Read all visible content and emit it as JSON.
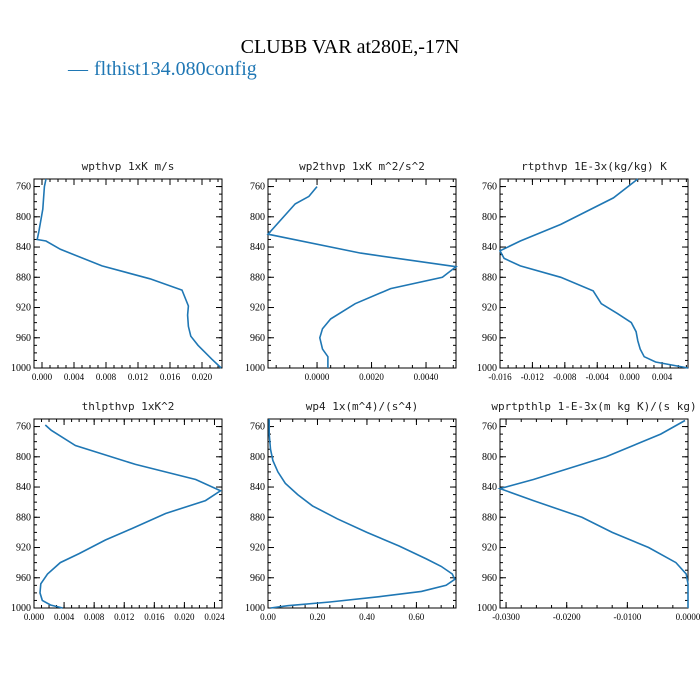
{
  "title": "CLUBB VAR at280E,-17N",
  "legend": {
    "marker": "—",
    "label": "flthist134.080config",
    "color": "#1f77b4"
  },
  "chart_data": [
    {
      "type": "line",
      "title": "wpthvp  1xK m/s",
      "xlim": [
        -0.001,
        0.0225
      ],
      "ylim": [
        1000,
        750
      ],
      "xticks": [
        0.0,
        0.004,
        0.008,
        0.012,
        0.016,
        0.02
      ],
      "xtick_labels": [
        "0.000",
        "0.004",
        "0.008",
        "0.012",
        "0.016",
        "0.020"
      ],
      "yticks": [
        760,
        800,
        840,
        880,
        920,
        960,
        1000
      ],
      "series": [
        {
          "x": [
            0.0005,
            0.0003,
            0.0001,
            -0.0004,
            -0.0006,
            0.0005,
            0.0023,
            0.0075,
            0.0135,
            0.0175,
            0.0183,
            0.0182,
            0.0183,
            0.0186,
            0.0195,
            0.0212,
            0.0224
          ],
          "y": [
            750,
            760,
            790,
            820,
            830,
            832,
            843,
            865,
            882,
            897,
            918,
            930,
            945,
            958,
            970,
            988,
            1000
          ]
        }
      ]
    },
    {
      "type": "line",
      "title": "wp2thvp  1xK m^2/s^2",
      "xlim": [
        -0.0018,
        0.0051
      ],
      "ylim": [
        1000,
        750
      ],
      "xticks": [
        0.0,
        0.002,
        0.004
      ],
      "xtick_labels": [
        "0.0000",
        "0.0020",
        "0.0040"
      ],
      "yticks": [
        760,
        800,
        840,
        880,
        920,
        960,
        1000
      ],
      "series": [
        {
          "x": [
            0.0,
            -0.0003,
            -0.0008,
            -0.0018,
            0.0016,
            0.0051,
            0.0046,
            0.0027,
            0.0014,
            0.0005,
            0.0002,
            0.0001,
            0.0002,
            0.0004,
            0.0004
          ],
          "y": [
            760,
            773,
            783,
            823,
            848,
            866,
            880,
            895,
            915,
            935,
            948,
            960,
            975,
            985,
            1000
          ]
        }
      ]
    },
    {
      "type": "line",
      "title": "rtpthvp  1E-3x(kg/kg) K",
      "xlim": [
        -0.016,
        0.0072
      ],
      "ylim": [
        1000,
        750
      ],
      "xticks": [
        -0.016,
        -0.012,
        -0.008,
        -0.004,
        0.0,
        0.004
      ],
      "xtick_labels": [
        "-0.016",
        "-0.012",
        "-0.008",
        "-0.004",
        "0.000",
        "0.004"
      ],
      "yticks": [
        760,
        800,
        840,
        880,
        920,
        960,
        1000
      ],
      "series": [
        {
          "x": [
            0.001,
            -0.002,
            -0.0085,
            -0.0135,
            -0.016,
            -0.0155,
            -0.0135,
            -0.0085,
            -0.0045,
            -0.0035,
            -0.0015,
            0.0002,
            0.0008,
            0.001,
            0.0013,
            0.0018,
            0.0032,
            0.0072
          ],
          "y": [
            750,
            775,
            810,
            832,
            845,
            855,
            865,
            880,
            898,
            915,
            928,
            940,
            952,
            964,
            975,
            985,
            992,
            1000
          ]
        }
      ]
    },
    {
      "type": "line",
      "title": "thlpthvp  1xK^2",
      "xlim": [
        0.0,
        0.025
      ],
      "ylim": [
        1000,
        750
      ],
      "xticks": [
        0.0,
        0.004,
        0.008,
        0.012,
        0.016,
        0.02,
        0.024
      ],
      "xtick_labels": [
        "0.000",
        "0.004",
        "0.008",
        "0.012",
        "0.016",
        "0.020",
        "0.024"
      ],
      "yticks": [
        760,
        800,
        840,
        880,
        920,
        960,
        1000
      ],
      "series": [
        {
          "x": [
            0.0015,
            0.0023,
            0.0055,
            0.0135,
            0.0215,
            0.0248,
            0.0228,
            0.0175,
            0.013,
            0.0095,
            0.006,
            0.0035,
            0.0018,
            0.0009,
            0.0008,
            0.0011,
            0.0022,
            0.0038
          ],
          "y": [
            758,
            765,
            785,
            810,
            830,
            845,
            858,
            875,
            895,
            910,
            928,
            940,
            955,
            968,
            980,
            990,
            996,
            1000
          ]
        }
      ]
    },
    {
      "type": "line",
      "title": "wp4  1x(m^4)/(s^4)",
      "xlim": [
        0.0,
        0.76
      ],
      "ylim": [
        1000,
        750
      ],
      "xticks": [
        0.0,
        0.2,
        0.4,
        0.6
      ],
      "xtick_labels": [
        "0.00",
        "0.20",
        "0.40",
        "0.60"
      ],
      "yticks": [
        760,
        800,
        840,
        880,
        920,
        960,
        1000
      ],
      "series": [
        {
          "x": [
            0.005,
            0.005,
            0.01,
            0.02,
            0.04,
            0.07,
            0.12,
            0.18,
            0.28,
            0.4,
            0.53,
            0.64,
            0.7,
            0.745,
            0.755,
            0.72,
            0.62,
            0.45,
            0.25,
            0.08,
            0.01
          ],
          "y": [
            750,
            770,
            790,
            805,
            820,
            835,
            850,
            865,
            882,
            900,
            918,
            935,
            945,
            955,
            962,
            970,
            978,
            985,
            992,
            997,
            1000
          ]
        }
      ]
    },
    {
      "type": "line",
      "title": "wprtpthlp  1-E-3x(m kg K)/(s kg)",
      "xlim": [
        -0.031,
        0.0
      ],
      "ylim": [
        1000,
        750
      ],
      "xticks": [
        -0.03,
        -0.02,
        -0.01,
        0.0
      ],
      "xtick_labels": [
        "-0.0300",
        "-0.0200",
        "-0.0100",
        "0.0000"
      ],
      "yticks": [
        760,
        800,
        840,
        880,
        920,
        960,
        1000
      ],
      "series": [
        {
          "x": [
            -0.0005,
            -0.0045,
            -0.0135,
            -0.0255,
            -0.031,
            -0.0255,
            -0.0175,
            -0.0125,
            -0.0065,
            -0.002,
            -0.0003,
            0.0,
            0.0,
            0.0
          ],
          "y": [
            752,
            770,
            800,
            830,
            842,
            858,
            880,
            900,
            920,
            940,
            955,
            968,
            985,
            1000
          ]
        }
      ]
    }
  ]
}
